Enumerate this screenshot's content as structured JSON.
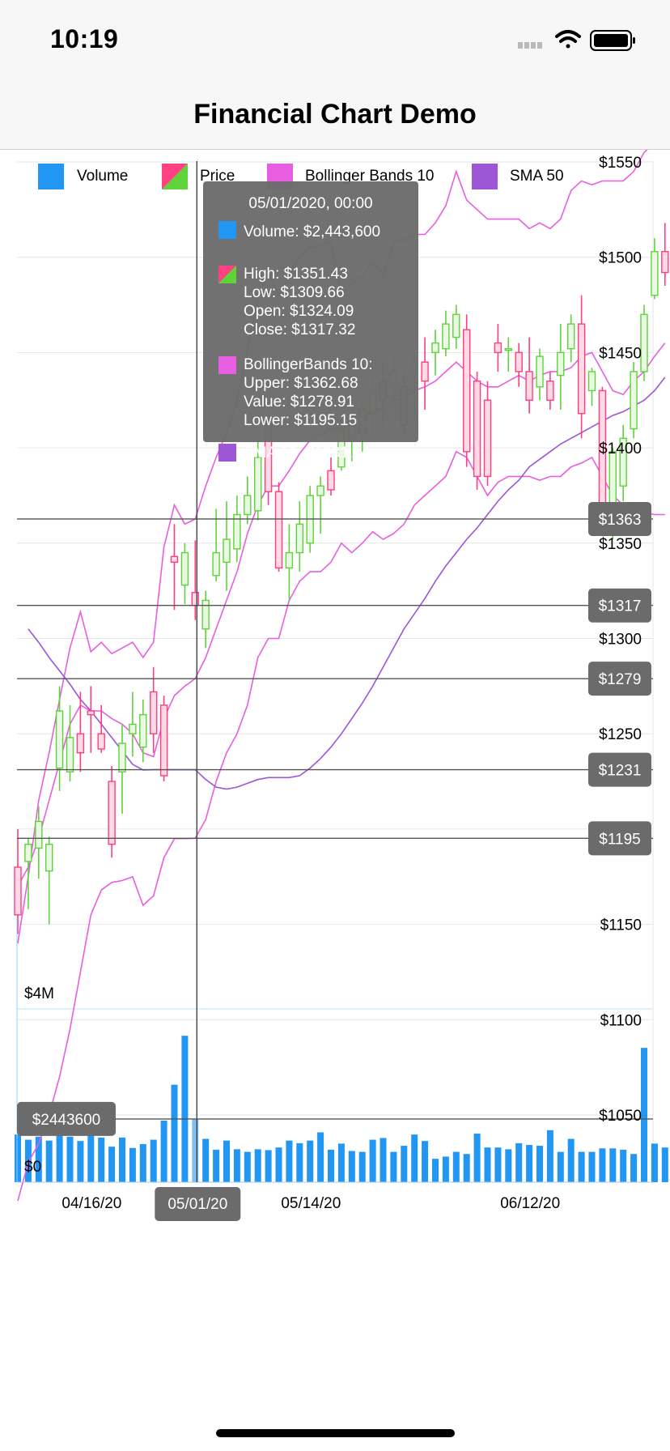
{
  "status_bar": {
    "time": "10:19",
    "icons": [
      "signal-icon",
      "wifi-icon",
      "battery-icon"
    ]
  },
  "nav": {
    "title": "Financial Chart Demo"
  },
  "legend": [
    {
      "label": "Volume",
      "icon": "volume-swatch-icon",
      "color": "#2196f3"
    },
    {
      "label": "Price",
      "icon": "price-swatch-icon",
      "color": "#ff4081"
    },
    {
      "label": "Bollinger Bands 10",
      "icon": "bollinger-swatch-icon",
      "color": "#e75ee0"
    },
    {
      "label": "SMA 50",
      "icon": "sma-swatch-icon",
      "color": "#9c56d6"
    }
  ],
  "tooltip": {
    "title": "05/01/2020, 00:00",
    "volume": "Volume: $2,443,600",
    "price_lines": [
      "High: $1351.43",
      "Low: $1309.66",
      "Open: $1324.09",
      "Close: $1317.32"
    ],
    "bollinger_lines": [
      "BollingerBands 10:",
      "Upper: $1362.68",
      "Value: $1278.91",
      "Lower: $1195.15"
    ],
    "sma": "SMA 50: $1231.14"
  },
  "annotations": {
    "price": [
      "$1363",
      "$1317",
      "$1279",
      "$1231",
      "$1195"
    ],
    "volume": "$2443600",
    "x": "05/01/20"
  },
  "chart_data": {
    "type": "candlestick",
    "colors": {
      "up": "#5fd33a",
      "down": "#ff3d7f",
      "volume": "#2196f3",
      "bollinger": "#e75ee0",
      "sma": "#9c56d6"
    },
    "price_axis": {
      "min": 1020,
      "max": 1565,
      "ticks": [
        1050,
        1100,
        1150,
        1200,
        1250,
        1300,
        1350,
        1400,
        1450,
        1500,
        1550
      ],
      "tick_labels": [
        "$1050",
        "$1100",
        "$1150",
        "$1200",
        "$1250",
        "$1300",
        "$1350",
        "$1400",
        "$1450",
        "$1500",
        "$1550"
      ]
    },
    "volume_axis": {
      "min": 0,
      "max": 5200000,
      "ticks": [
        0,
        4000000
      ],
      "tick_labels": [
        "$0",
        "$4M"
      ]
    },
    "x_labels": [
      {
        "label": "04/16/20",
        "index": 6
      },
      {
        "label": "05/14/20",
        "index": 27
      },
      {
        "label": "06/12/20",
        "index": 48
      }
    ],
    "crosshair_index": 17,
    "candles": [
      {
        "o": 1180,
        "h": 1200,
        "l": 1145,
        "c": 1155
      },
      {
        "o": 1183,
        "h": 1195,
        "l": 1158,
        "c": 1192
      },
      {
        "o": 1190,
        "h": 1212,
        "l": 1174,
        "c": 1204
      },
      {
        "o": 1178,
        "h": 1196,
        "l": 1150,
        "c": 1192
      },
      {
        "o": 1232,
        "h": 1275,
        "l": 1220,
        "c": 1262
      },
      {
        "o": 1230,
        "h": 1265,
        "l": 1225,
        "c": 1248
      },
      {
        "o": 1250,
        "h": 1272,
        "l": 1230,
        "c": 1240
      },
      {
        "o": 1262,
        "h": 1275,
        "l": 1240,
        "c": 1260
      },
      {
        "o": 1250,
        "h": 1265,
        "l": 1240,
        "c": 1242
      },
      {
        "o": 1225,
        "h": 1233,
        "l": 1185,
        "c": 1192
      },
      {
        "o": 1230,
        "h": 1255,
        "l": 1208,
        "c": 1245
      },
      {
        "o": 1250,
        "h": 1272,
        "l": 1238,
        "c": 1255
      },
      {
        "o": 1243,
        "h": 1268,
        "l": 1235,
        "c": 1260
      },
      {
        "o": 1272,
        "h": 1285,
        "l": 1240,
        "c": 1250
      },
      {
        "o": 1265,
        "h": 1270,
        "l": 1225,
        "c": 1228
      },
      {
        "o": 1343,
        "h": 1360,
        "l": 1315,
        "c": 1340
      },
      {
        "o": 1328,
        "h": 1350,
        "l": 1318,
        "c": 1345
      },
      {
        "o": 1324.09,
        "h": 1351.43,
        "l": 1309.66,
        "c": 1317.32
      },
      {
        "o": 1305,
        "h": 1325,
        "l": 1295,
        "c": 1320
      },
      {
        "o": 1333,
        "h": 1368,
        "l": 1330,
        "c": 1345
      },
      {
        "o": 1340,
        "h": 1372,
        "l": 1325,
        "c": 1352
      },
      {
        "o": 1347,
        "h": 1375,
        "l": 1340,
        "c": 1365
      },
      {
        "o": 1365,
        "h": 1385,
        "l": 1360,
        "c": 1375
      },
      {
        "o": 1367,
        "h": 1405,
        "l": 1362,
        "c": 1395
      },
      {
        "o": 1415,
        "h": 1420,
        "l": 1370,
        "c": 1377
      },
      {
        "o": 1377,
        "h": 1382,
        "l": 1335,
        "c": 1337
      },
      {
        "o": 1337,
        "h": 1360,
        "l": 1320,
        "c": 1345
      },
      {
        "o": 1345,
        "h": 1372,
        "l": 1335,
        "c": 1360
      },
      {
        "o": 1350,
        "h": 1380,
        "l": 1345,
        "c": 1375
      },
      {
        "o": 1375,
        "h": 1385,
        "l": 1355,
        "c": 1380
      },
      {
        "o": 1388,
        "h": 1395,
        "l": 1375,
        "c": 1378
      },
      {
        "o": 1390,
        "h": 1415,
        "l": 1388,
        "c": 1410
      },
      {
        "o": 1405,
        "h": 1420,
        "l": 1393,
        "c": 1412
      },
      {
        "o": 1408,
        "h": 1425,
        "l": 1398,
        "c": 1420
      },
      {
        "o": 1418,
        "h": 1440,
        "l": 1408,
        "c": 1430
      },
      {
        "o": 1435,
        "h": 1445,
        "l": 1412,
        "c": 1425
      },
      {
        "o": 1432,
        "h": 1448,
        "l": 1420,
        "c": 1440
      },
      {
        "o": 1432,
        "h": 1440,
        "l": 1408,
        "c": 1412
      },
      {
        "o": 1440,
        "h": 1450,
        "l": 1415,
        "c": 1445
      },
      {
        "o": 1445,
        "h": 1458,
        "l": 1420,
        "c": 1435
      },
      {
        "o": 1450,
        "h": 1462,
        "l": 1438,
        "c": 1455
      },
      {
        "o": 1452,
        "h": 1472,
        "l": 1448,
        "c": 1465
      },
      {
        "o": 1458,
        "h": 1475,
        "l": 1452,
        "c": 1470
      },
      {
        "o": 1462,
        "h": 1470,
        "l": 1390,
        "c": 1398
      },
      {
        "o": 1435,
        "h": 1440,
        "l": 1378,
        "c": 1385
      },
      {
        "o": 1425,
        "h": 1435,
        "l": 1380,
        "c": 1385
      },
      {
        "o": 1455,
        "h": 1465,
        "l": 1440,
        "c": 1450
      },
      {
        "o": 1452,
        "h": 1458,
        "l": 1440,
        "c": 1452
      },
      {
        "o": 1450,
        "h": 1455,
        "l": 1432,
        "c": 1440
      },
      {
        "o": 1440,
        "h": 1458,
        "l": 1418,
        "c": 1425
      },
      {
        "o": 1432,
        "h": 1452,
        "l": 1425,
        "c": 1448
      },
      {
        "o": 1435,
        "h": 1440,
        "l": 1420,
        "c": 1425
      },
      {
        "o": 1438,
        "h": 1465,
        "l": 1420,
        "c": 1450
      },
      {
        "o": 1452,
        "h": 1470,
        "l": 1445,
        "c": 1465
      },
      {
        "o": 1465,
        "h": 1480,
        "l": 1405,
        "c": 1418
      },
      {
        "o": 1430,
        "h": 1442,
        "l": 1422,
        "c": 1440
      },
      {
        "o": 1430,
        "h": 1432,
        "l": 1360,
        "c": 1368
      },
      {
        "o": 1368,
        "h": 1400,
        "l": 1352,
        "c": 1398
      },
      {
        "o": 1380,
        "h": 1412,
        "l": 1372,
        "c": 1405
      },
      {
        "o": 1410,
        "h": 1445,
        "l": 1405,
        "c": 1440
      },
      {
        "o": 1440,
        "h": 1475,
        "l": 1435,
        "c": 1470
      },
      {
        "o": 1480,
        "h": 1510,
        "l": 1478,
        "c": 1503
      },
      {
        "o": 1503,
        "h": 1518,
        "l": 1485,
        "c": 1492
      }
    ],
    "volume": [
      1100000,
      980000,
      1050000,
      960000,
      1250000,
      1050000,
      950000,
      1180000,
      1030000,
      820000,
      1030000,
      790000,
      880000,
      980000,
      1420000,
      2250000,
      3380000,
      1460000,
      1000000,
      750000,
      960000,
      760000,
      700000,
      760000,
      740000,
      800000,
      960000,
      900000,
      960000,
      1150000,
      750000,
      890000,
      720000,
      700000,
      980000,
      1020000,
      700000,
      840000,
      1100000,
      950000,
      540000,
      590000,
      700000,
      650000,
      1120000,
      800000,
      800000,
      760000,
      900000,
      860000,
      840000,
      1200000,
      700000,
      1000000,
      700000,
      700000,
      780000,
      780000,
      750000,
      650000,
      3100000,
      890000,
      800000
    ],
    "bollinger": {
      "upper": [
        1140,
        1175,
        1215,
        1240,
        1268,
        1295,
        1314,
        1293,
        1298,
        1292,
        1295,
        1298,
        1290,
        1298,
        1348,
        1370,
        1360,
        1362.68,
        1380,
        1395,
        1408,
        1425,
        1452,
        1478,
        1492,
        1480,
        1490,
        1501,
        1505,
        1506,
        1508,
        1480,
        1486,
        1490,
        1498,
        1490,
        1508,
        1509,
        1512,
        1512,
        1518,
        1527,
        1545,
        1530,
        1525,
        1520,
        1520,
        1520,
        1520,
        1515,
        1518,
        1515,
        1520,
        1535,
        1540,
        1538,
        1540,
        1540,
        1540,
        1545,
        1555,
        1560,
        1565
      ],
      "middle": [
        1170,
        1180,
        1195,
        1215,
        1235,
        1255,
        1265,
        1262,
        1262,
        1258,
        1255,
        1250,
        1240,
        1238,
        1258,
        1270,
        1275,
        1278.91,
        1290,
        1305,
        1320,
        1335,
        1355,
        1370,
        1380,
        1380,
        1388,
        1397,
        1404,
        1407,
        1410,
        1410,
        1412,
        1415,
        1420,
        1420,
        1425,
        1426,
        1430,
        1432,
        1435,
        1440,
        1445,
        1440,
        1435,
        1432,
        1432,
        1435,
        1438,
        1435,
        1438,
        1440,
        1440,
        1442,
        1448,
        1450,
        1440,
        1430,
        1428,
        1435,
        1440,
        1448,
        1455
      ],
      "lower": [
        1005,
        1025,
        1035,
        1050,
        1070,
        1095,
        1125,
        1155,
        1168,
        1172,
        1173,
        1175,
        1160,
        1165,
        1185,
        1195,
        1195,
        1195.15,
        1205,
        1225,
        1240,
        1250,
        1265,
        1290,
        1300,
        1300,
        1320,
        1330,
        1335,
        1335,
        1340,
        1350,
        1345,
        1350,
        1356,
        1352,
        1355,
        1360,
        1370,
        1375,
        1380,
        1385,
        1398,
        1395,
        1385,
        1375,
        1382,
        1385,
        1385,
        1385,
        1383,
        1385,
        1385,
        1390,
        1392,
        1395,
        1385,
        1375,
        1370,
        1368,
        1366,
        1365,
        1365
      ]
    },
    "sma50": [
      null,
      1305,
      1298,
      1290,
      1283,
      1276,
      1268,
      1262,
      1255,
      1248,
      1241,
      1234,
      1231,
      1231.14,
      1231.14,
      1231.14,
      1231.14,
      1231.14,
      1226,
      1222,
      1221,
      1222,
      1224,
      1226,
      1227,
      1227,
      1227,
      1228,
      1232,
      1237,
      1243,
      1250,
      1258,
      1266,
      1275,
      1285,
      1295,
      1305,
      1313,
      1321,
      1330,
      1338,
      1345,
      1352,
      1358,
      1365,
      1372,
      1378,
      1383,
      1390,
      1394,
      1398,
      1402,
      1405,
      1408,
      1411,
      1414,
      1417,
      1419,
      1422,
      1425,
      1430,
      1437
    ]
  }
}
